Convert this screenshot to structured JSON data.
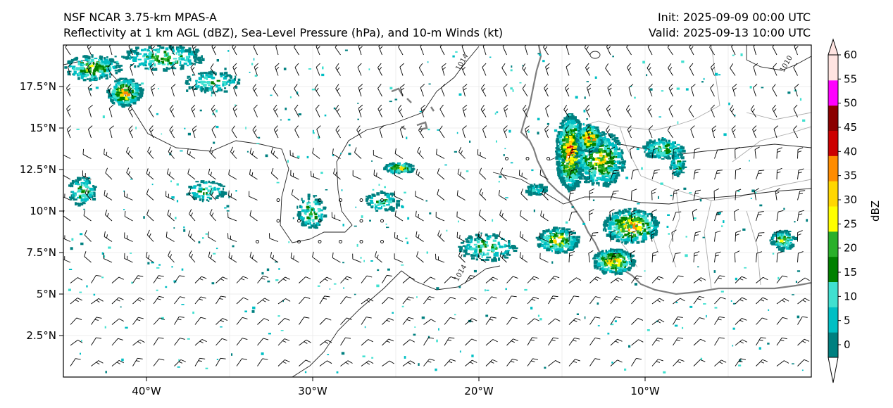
{
  "header": {
    "model": "NSF NCAR 3.75-km MPAS-A",
    "fields": "Reflectivity at 1 km AGL (dBZ), Sea-Level Pressure (hPa), and 10-m Winds (kt)",
    "init": "Init: 2025-09-09 00:00 UTC",
    "valid": "Valid: 2025-09-13 10:00 UTC"
  },
  "map": {
    "lon_range": [
      -45,
      0
    ],
    "lat_range": [
      0,
      20
    ],
    "x_ticks": [
      {
        "lon": -40,
        "label": "40°W"
      },
      {
        "lon": -30,
        "label": "30°W"
      },
      {
        "lon": -20,
        "label": "20°W"
      },
      {
        "lon": -10,
        "label": "10°W"
      }
    ],
    "y_ticks": [
      {
        "lat": 2.5,
        "label": "2.5°N"
      },
      {
        "lat": 5,
        "label": "5°N"
      },
      {
        "lat": 7.5,
        "label": "7.5°N"
      },
      {
        "lat": 10,
        "label": "10°N"
      },
      {
        "lat": 12.5,
        "label": "12.5°N"
      },
      {
        "lat": 15,
        "label": "15°N"
      },
      {
        "lat": 17.5,
        "label": "17.5°N"
      }
    ],
    "contour_labels": [
      {
        "text": "1014",
        "lon": -20.9,
        "lat": 18.9
      },
      {
        "text": "1014",
        "lon": -21.0,
        "lat": 6.2
      },
      {
        "text": "1010",
        "lon": -1.4,
        "lat": 18.8
      }
    ]
  },
  "colorbar": {
    "label": "dBZ",
    "ticks": [
      "0",
      "5",
      "10",
      "15",
      "20",
      "25",
      "30",
      "35",
      "40",
      "45",
      "50",
      "55",
      "60"
    ],
    "colors": [
      "#008080",
      "#00bfc4",
      "#40e0d0",
      "#008000",
      "#2ab02a",
      "#ffff00",
      "#ffd700",
      "#ff8c00",
      "#cc0000",
      "#8b0000",
      "#ff00ff",
      "#ffe4e1"
    ]
  }
}
